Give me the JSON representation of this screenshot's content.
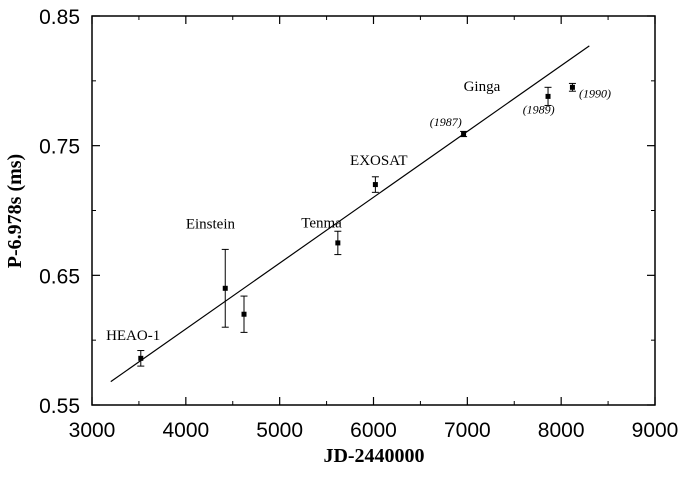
{
  "chart_data": {
    "type": "scatter",
    "xlabel": "JD-2440000",
    "ylabel": "P-6.978s  (ms)",
    "xlim": [
      3000,
      9000
    ],
    "ylim": [
      0.55,
      0.85
    ],
    "x_ticks": [
      "3000",
      "4000",
      "5000",
      "6000",
      "7000",
      "8000",
      "9000"
    ],
    "y_ticks": [
      "0.85",
      "0.75",
      "0.65",
      "0.55"
    ],
    "grid": false,
    "points": [
      {
        "x": 3520,
        "y": 0.586,
        "yerr": 0.006
      },
      {
        "x": 4420,
        "y": 0.64,
        "yerr": 0.03
      },
      {
        "x": 4620,
        "y": 0.62,
        "yerr": 0.014
      },
      {
        "x": 5620,
        "y": 0.675,
        "yerr": 0.009
      },
      {
        "x": 6020,
        "y": 0.72,
        "yerr": 0.006
      },
      {
        "x": 6960,
        "y": 0.759,
        "yerr": 0.002
      },
      {
        "x": 7860,
        "y": 0.788,
        "yerr": 0.007
      },
      {
        "x": 8120,
        "y": 0.795,
        "yerr": 0.003
      }
    ],
    "fit_line": {
      "x": [
        3200,
        8300
      ],
      "y": [
        0.568,
        0.827
      ]
    },
    "annotations": [
      {
        "text": "HEAO-1",
        "x": 3150,
        "y": 0.6,
        "style": "label"
      },
      {
        "text": "Einstein",
        "x": 4000,
        "y": 0.686,
        "style": "label"
      },
      {
        "text": "Tenma",
        "x": 5230,
        "y": 0.687,
        "style": "label"
      },
      {
        "text": "EXOSAT",
        "x": 5750,
        "y": 0.735,
        "style": "label"
      },
      {
        "text": "Ginga",
        "x": 6960,
        "y": 0.792,
        "style": "label"
      },
      {
        "text": "(1987)",
        "x": 6600,
        "y": 0.765,
        "style": "year"
      },
      {
        "text": "(1989)",
        "x": 7590,
        "y": 0.775,
        "style": "year"
      },
      {
        "text": "(1990)",
        "x": 8190,
        "y": 0.787,
        "style": "year"
      }
    ]
  }
}
